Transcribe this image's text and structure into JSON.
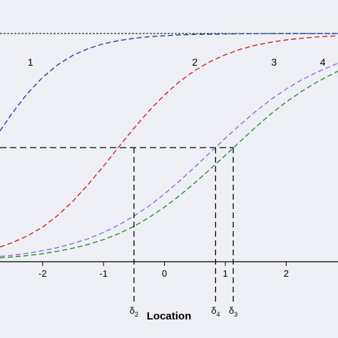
{
  "chart_data": {
    "type": "line",
    "xlabel": "Location",
    "ylabel": "",
    "xlim": [
      -2.7,
      2.85
    ],
    "ylim": [
      0,
      1
    ],
    "x_ticks": [
      -2,
      -1,
      0,
      1,
      2
    ],
    "x_tick_labels": [
      "-2",
      "-1",
      "0",
      "1",
      "2"
    ],
    "upper_asymptote": 1,
    "threshold_y": 0.5,
    "series": [
      {
        "name": "1",
        "color": "#2040a0",
        "x": [
          -2.7,
          -2.5,
          -2.25,
          -2.0,
          -1.75,
          -1.5,
          -1.25,
          -1.0,
          -0.75,
          -0.5,
          -0.25,
          0.0,
          0.25,
          0.5,
          0.75,
          1.0,
          1.25,
          1.5,
          1.75,
          2.0,
          2.25,
          2.5,
          2.85
        ],
        "y": [
          0.573,
          0.651,
          0.737,
          0.808,
          0.863,
          0.905,
          0.934,
          0.955,
          0.969,
          0.979,
          0.986,
          0.99,
          0.994,
          0.996,
          0.997,
          0.998,
          0.999,
          0.999,
          1.0,
          1.0,
          1.0,
          1.0,
          1.0
        ]
      },
      {
        "name": "2",
        "color": "#cc2222",
        "x": [
          -2.7,
          -2.5,
          -2.25,
          -2.0,
          -1.75,
          -1.5,
          -1.25,
          -1.0,
          -0.75,
          -0.5,
          -0.25,
          0.0,
          0.25,
          0.5,
          0.75,
          1.0,
          1.25,
          1.5,
          1.75,
          2.0,
          2.25,
          2.5,
          2.85
        ],
        "y": [
          0.064,
          0.083,
          0.113,
          0.152,
          0.203,
          0.266,
          0.339,
          0.419,
          0.503,
          0.585,
          0.662,
          0.731,
          0.79,
          0.838,
          0.877,
          0.907,
          0.931,
          0.949,
          0.962,
          0.972,
          0.979,
          0.985,
          0.99
        ]
      },
      {
        "name": "3",
        "color": "#8a6ee0",
        "x": [
          -2.7,
          -2.5,
          -2.25,
          -2.0,
          -1.75,
          -1.5,
          -1.25,
          -1.0,
          -0.75,
          -0.5,
          -0.25,
          0.0,
          0.25,
          0.5,
          0.75,
          1.0,
          1.25,
          1.5,
          1.75,
          2.0,
          2.25,
          2.5,
          2.85
        ],
        "y": [
          0.023,
          0.028,
          0.037,
          0.048,
          0.062,
          0.08,
          0.101,
          0.128,
          0.161,
          0.2,
          0.245,
          0.297,
          0.354,
          0.415,
          0.478,
          0.541,
          0.602,
          0.659,
          0.711,
          0.757,
          0.797,
          0.83,
          0.87
        ]
      },
      {
        "name": "4",
        "color": "#2a8a2a",
        "x": [
          -2.7,
          -2.5,
          -2.25,
          -2.0,
          -1.75,
          -1.5,
          -1.25,
          -1.0,
          -0.75,
          -0.5,
          -0.25,
          0.0,
          0.25,
          0.5,
          0.75,
          1.0,
          1.25,
          1.5,
          1.75,
          2.0,
          2.25,
          2.5,
          2.85
        ],
        "y": [
          0.017,
          0.021,
          0.027,
          0.035,
          0.046,
          0.059,
          0.076,
          0.097,
          0.123,
          0.155,
          0.194,
          0.239,
          0.29,
          0.346,
          0.405,
          0.466,
          0.529,
          0.59,
          0.648,
          0.7,
          0.746,
          0.787,
          0.835
        ]
      }
    ],
    "markers": [
      {
        "label": "δ2",
        "base": "δ",
        "sub": "2",
        "x": -0.5
      },
      {
        "label": "δ4",
        "base": "δ",
        "sub": "4",
        "x": 0.84
      },
      {
        "label": "δ3",
        "base": "δ",
        "sub": "3",
        "x": 1.13
      }
    ],
    "label_positions": [
      {
        "text": "1",
        "x": -2.2,
        "y": 0.86
      },
      {
        "text": "2",
        "x": 0.5,
        "y": 0.86
      },
      {
        "text": "3",
        "x": 1.8,
        "y": 0.86
      },
      {
        "text": "4",
        "x": 2.6,
        "y": 0.86
      }
    ]
  }
}
